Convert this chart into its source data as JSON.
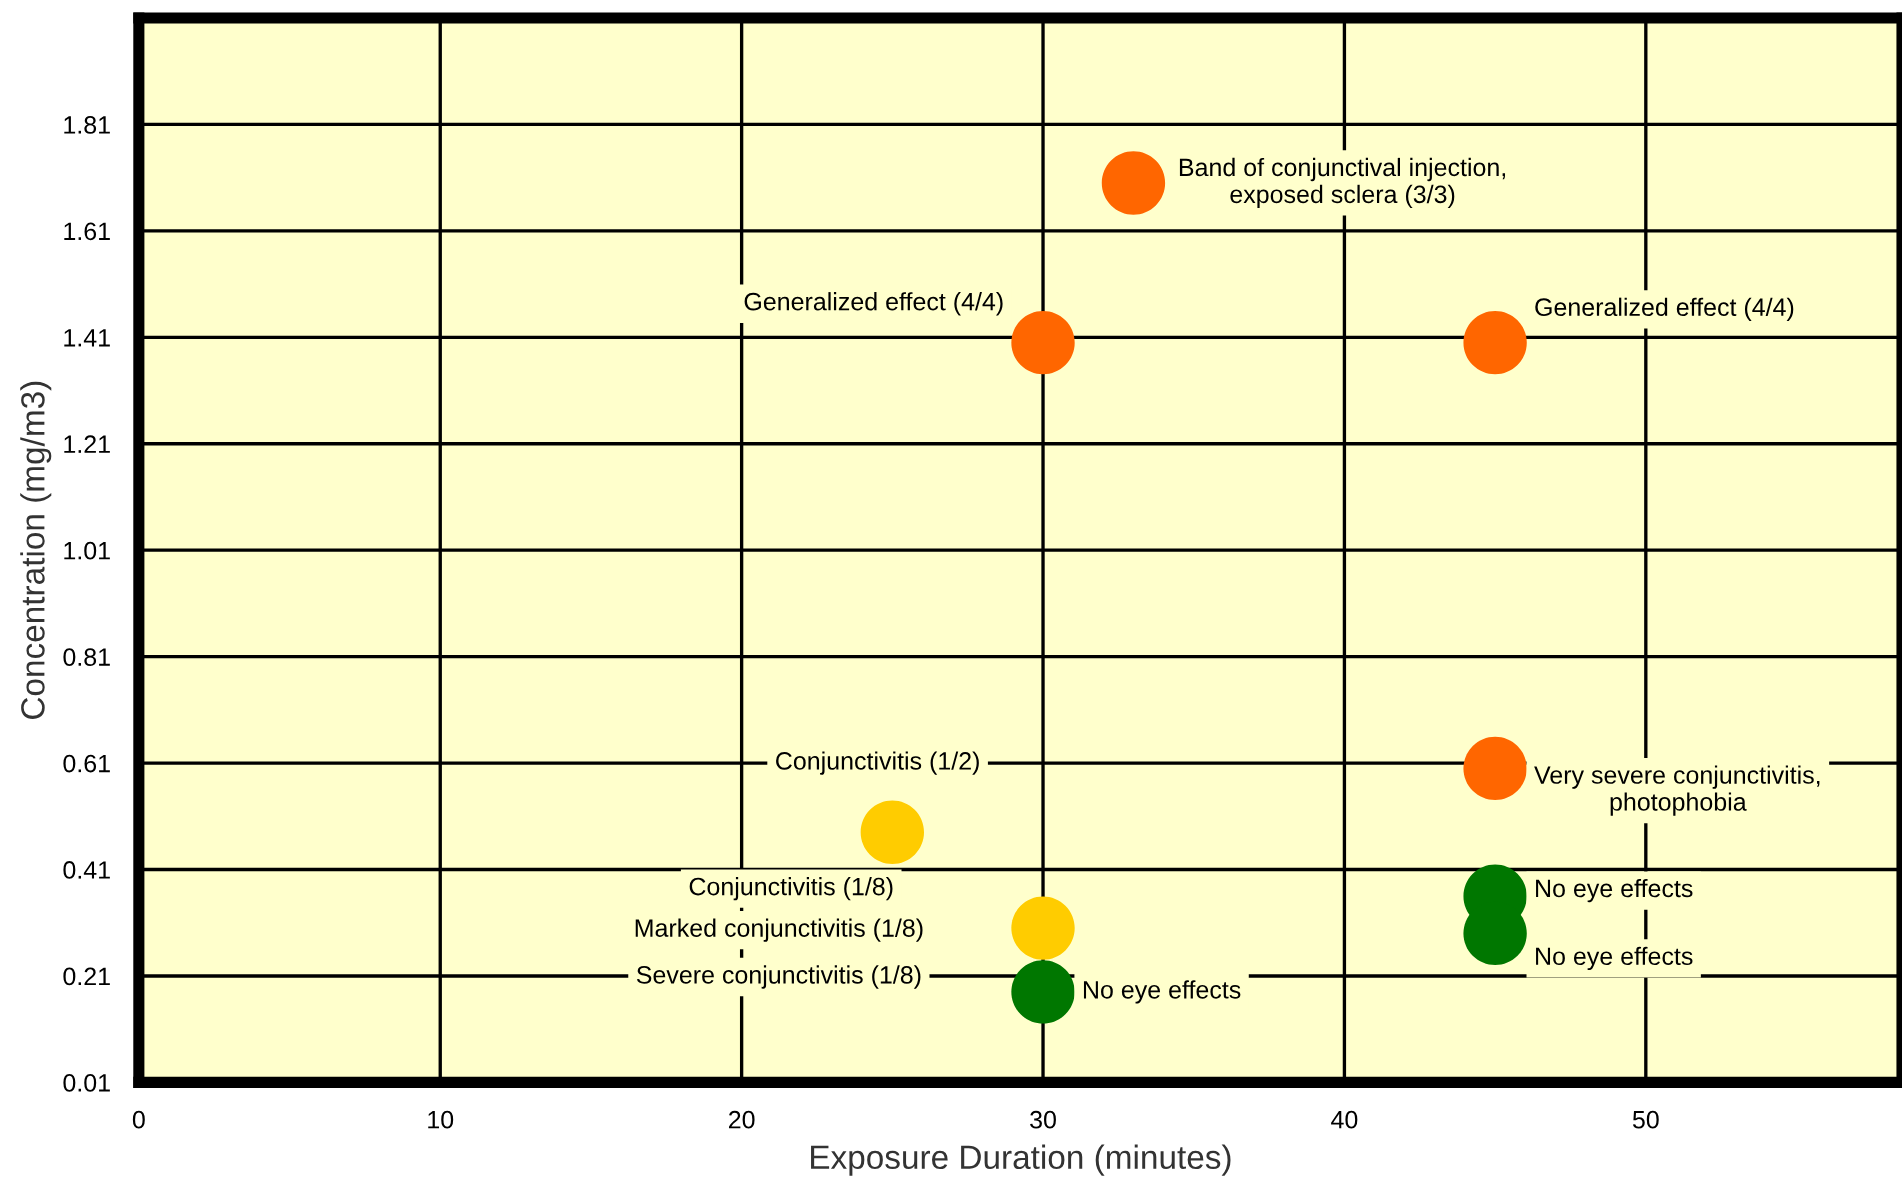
{
  "chart_data": {
    "type": "scatter",
    "xlabel": "Exposure Duration (minutes)",
    "ylabel": "Concentration (mg/m3)",
    "x": [
      33,
      30,
      45,
      45,
      25,
      30,
      30,
      45,
      45
    ],
    "values": [
      1.7,
      1.4,
      1.4,
      0.6,
      0.48,
      0.3,
      0.18,
      0.36,
      0.29
    ],
    "colors": [
      "#ff6600",
      "#ff6600",
      "#ff6600",
      "#ff6600",
      "#ffcc00",
      "#ffcc00",
      "#007700",
      "#007700",
      "#007700"
    ],
    "marker": "circle",
    "xlim": [
      0,
      58.5
    ],
    "ylim": [
      0.01,
      2.01
    ],
    "xticks": [
      0,
      10,
      20,
      30,
      40,
      50
    ],
    "yticks": [
      0.01,
      0.21,
      0.41,
      0.61,
      0.81,
      1.01,
      1.21,
      1.41,
      1.61,
      1.81
    ],
    "grid": true,
    "annotations": [
      {
        "text": "Band of conjunctival injection,\nexposed sclera (3/3)",
        "x": 33,
        "y": 1.7
      },
      {
        "text": "Generalized effect (4/4)",
        "x": 30,
        "y": 1.4
      },
      {
        "text": "Generalized effect (4/4)",
        "x": 45,
        "y": 1.4
      },
      {
        "text": "Very severe conjunctivitis,\nphotophobia",
        "x": 45,
        "y": 0.6
      },
      "Conjunctivitis (1/2)",
      "Conjunctivitis (1/8)",
      "Marked conjunctivitis (1/8)",
      "Severe conjunctivitis (1/8)",
      {
        "text": "No eye effects",
        "x": 30,
        "y": 0.18
      },
      {
        "text": "No eye effects",
        "x": 45,
        "y": 0.36
      },
      {
        "text": "No eye effects",
        "x": 45,
        "y": 0.29
      }
    ]
  }
}
